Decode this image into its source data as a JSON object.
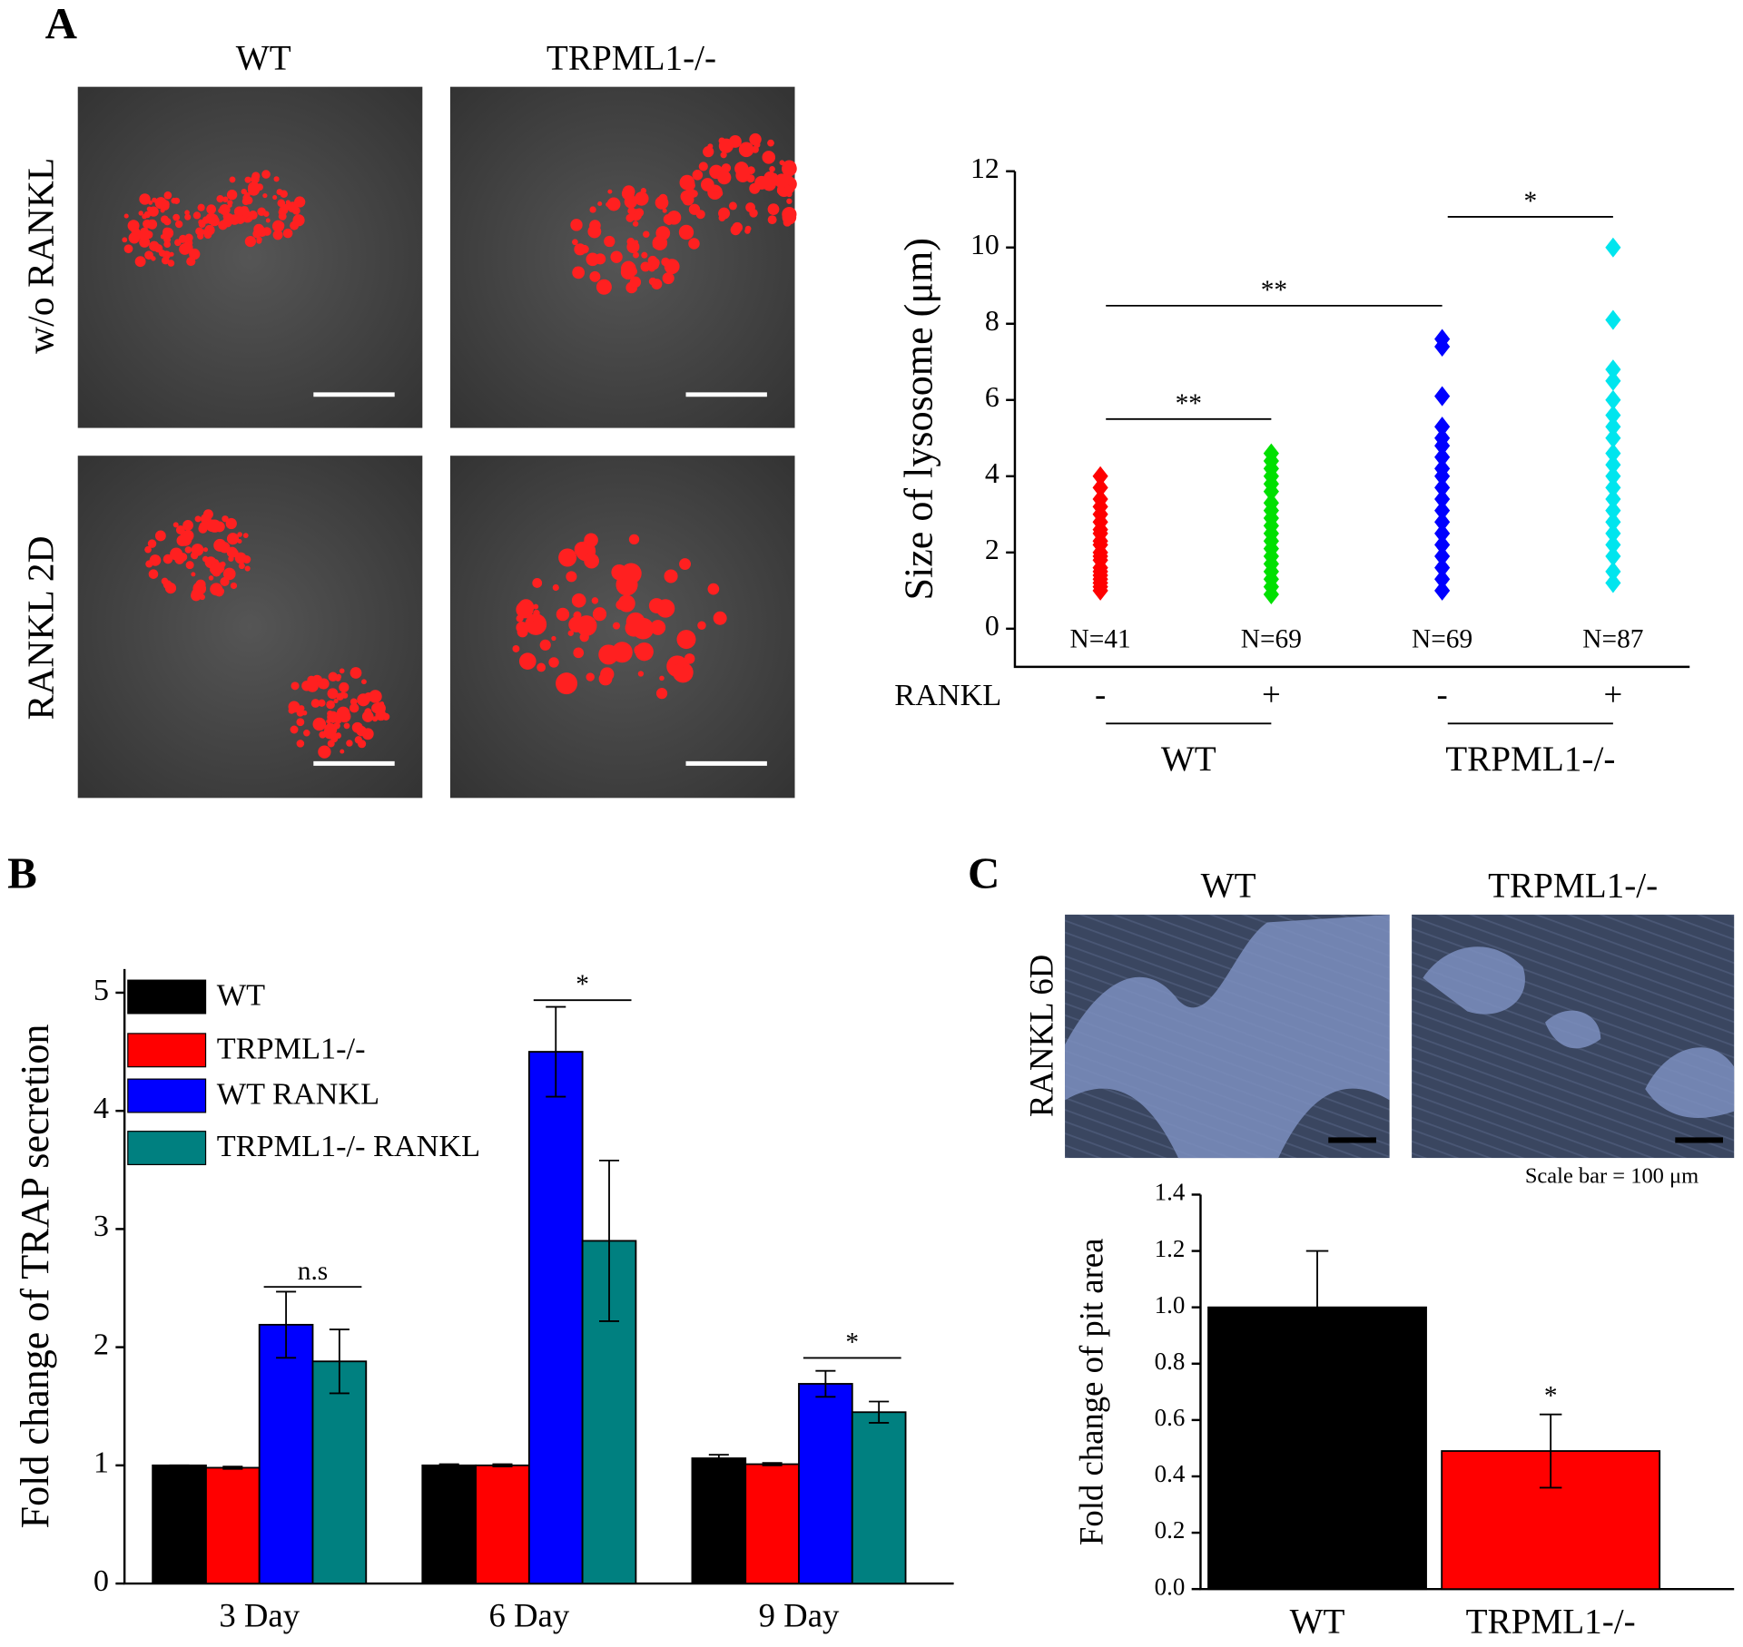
{
  "figure": {
    "panel_labels": [
      "A",
      "B",
      "C"
    ],
    "panel_a_columns": [
      "WT",
      "TRPML1-/-"
    ],
    "panel_a_rows": [
      "w/o RANKL",
      "RANKL 2D"
    ],
    "panel_c_columns": [
      "WT",
      "TRPML1-/-"
    ],
    "panel_c_row": "RANKL 6D",
    "scale_bar": "Scale bar = 100 μm"
  },
  "chart_data": [
    {
      "type": "strip",
      "ylabel": "Size of lysosome (μm)",
      "ylim": [
        -1,
        12
      ],
      "yticks": [
        0,
        2,
        4,
        6,
        8,
        10,
        12
      ],
      "row_label": "RANKL",
      "categories": [
        "-",
        "+",
        "-",
        "+"
      ],
      "n_labels": [
        "N=41",
        "N=69",
        "N=69",
        "N=87"
      ],
      "group_labels": [
        "WT",
        "TRPML1-/-"
      ],
      "annotations": [
        "**",
        "**",
        "*"
      ],
      "series": [
        {
          "color": "#ff0000",
          "values": [
            4.0,
            3.7,
            3.4,
            3.2,
            3.0,
            2.8,
            2.6,
            2.5,
            2.3,
            2.2,
            2.0,
            1.9,
            1.8,
            1.6,
            1.5,
            1.4,
            1.3,
            1.2,
            1.1,
            1.0
          ]
        },
        {
          "color": "#00e000",
          "values": [
            4.6,
            4.4,
            4.2,
            4.0,
            3.8,
            3.6,
            3.3,
            3.1,
            2.9,
            2.7,
            2.5,
            2.3,
            2.1,
            1.9,
            1.7,
            1.5,
            1.3,
            1.1,
            0.9
          ]
        },
        {
          "color": "#0000ff",
          "values": [
            7.6,
            7.4,
            6.1,
            5.3,
            5.0,
            4.8,
            4.5,
            4.2,
            4.0,
            3.7,
            3.4,
            3.1,
            2.8,
            2.5,
            2.2,
            1.9,
            1.6,
            1.3,
            1.0
          ]
        },
        {
          "color": "#00e5ee",
          "values": [
            10.0,
            8.1,
            6.8,
            6.5,
            6.0,
            5.6,
            5.3,
            5.0,
            4.6,
            4.3,
            4.0,
            3.7,
            3.4,
            3.1,
            2.8,
            2.5,
            2.2,
            1.9,
            1.5,
            1.2
          ]
        }
      ]
    },
    {
      "type": "bar",
      "ylabel": "Fold change of TRAP secretion",
      "ylim": [
        0,
        5.2
      ],
      "yticks": [
        0,
        1,
        2,
        3,
        4,
        5
      ],
      "categories": [
        "3 Day",
        "6 Day",
        "9 Day"
      ],
      "annotations": [
        "n.s",
        "*",
        "*"
      ],
      "series": [
        {
          "name": "WT",
          "color": "#000000",
          "values": [
            1.0,
            1.0,
            1.06
          ],
          "errors": [
            0.0,
            0.01,
            0.03
          ]
        },
        {
          "name": "TRPML1-/-",
          "color": "#ff0000",
          "values": [
            0.98,
            1.0,
            1.01
          ],
          "errors": [
            0.01,
            0.01,
            0.01
          ]
        },
        {
          "name": "WT RANKL",
          "color": "#0000ff",
          "values": [
            2.19,
            4.5,
            1.69
          ],
          "errors": [
            0.28,
            0.38,
            0.11
          ]
        },
        {
          "name": "TRPML1-/- RANKL",
          "color": "#008080",
          "values": [
            1.88,
            2.9,
            1.45
          ],
          "errors": [
            0.27,
            0.68,
            0.09
          ]
        }
      ]
    },
    {
      "type": "bar",
      "ylabel": "Fold change of pit area",
      "ylim": [
        0,
        1.4
      ],
      "yticks": [
        {
          "value": 0,
          "label": "0.0"
        },
        0.2,
        0.4,
        0.6,
        0.8,
        {
          "value": 1,
          "label": "1.0"
        },
        1.2,
        1.4
      ],
      "categories": [
        "WT",
        "TRPML1-/-"
      ],
      "annotations": [
        "*"
      ],
      "series": [
        {
          "colors": [
            "#000000",
            "#ff0000"
          ],
          "values": [
            1.0,
            0.49
          ],
          "errors": [
            0.2,
            0.13
          ]
        }
      ]
    }
  ]
}
